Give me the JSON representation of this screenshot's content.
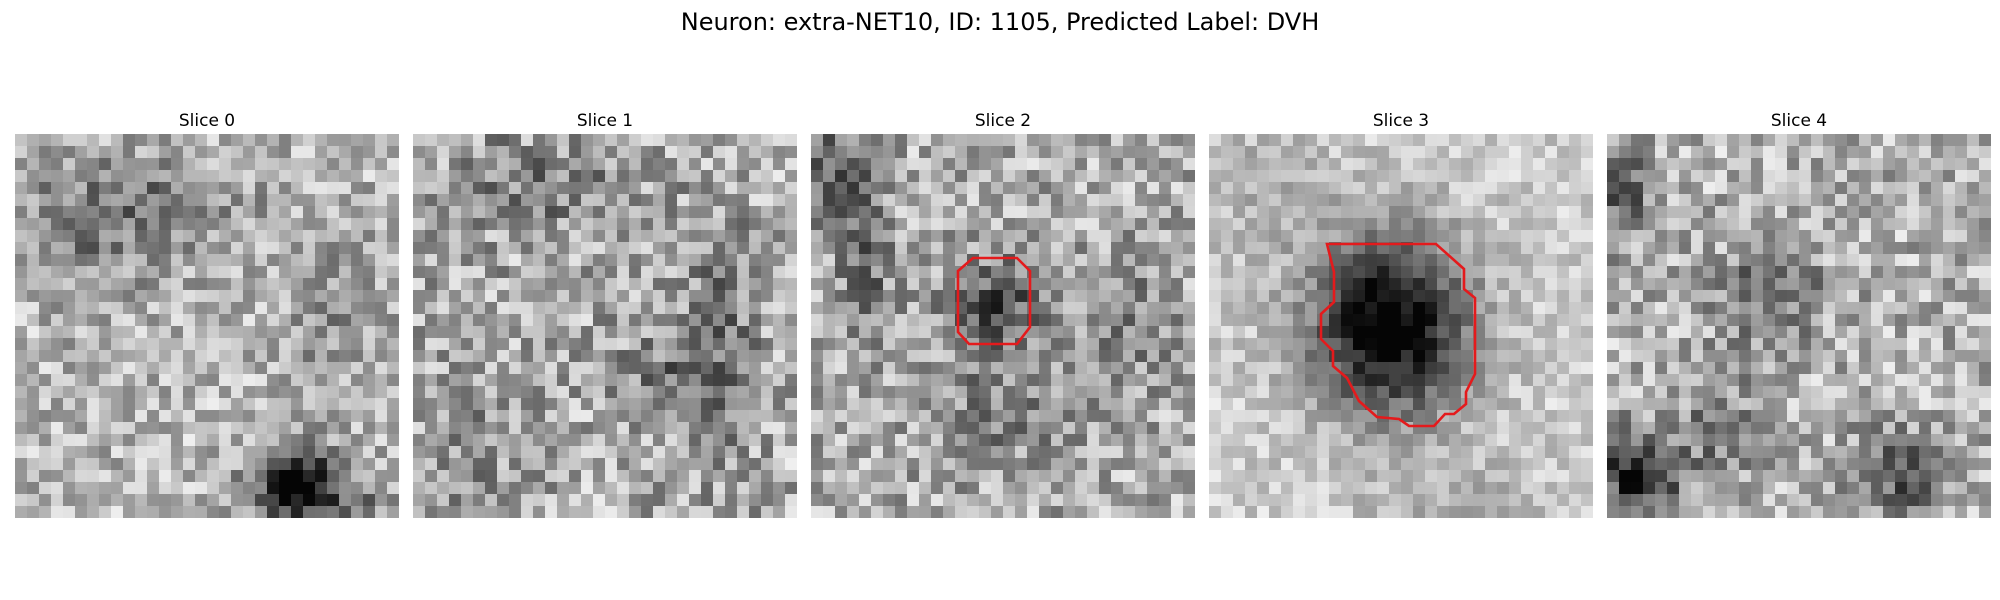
{
  "figure": {
    "title": "Neuron: extra-NET10, ID: 1105, Predicted Label: DVH"
  },
  "panels": [
    {
      "title": "Slice 0",
      "outline": false
    },
    {
      "title": "Slice 1",
      "outline": false
    },
    {
      "title": "Slice 2",
      "outline": true
    },
    {
      "title": "Slice 3",
      "outline": true
    },
    {
      "title": "Slice 4",
      "outline": false
    }
  ],
  "colors": {
    "outline": "#e41a1c",
    "background": "#ffffff"
  },
  "image": {
    "colormap": "grayscale",
    "grid_size": 32
  }
}
